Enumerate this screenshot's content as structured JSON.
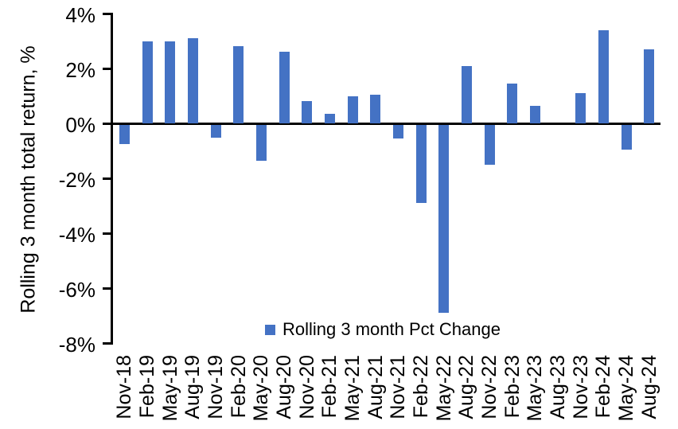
{
  "chart_data": {
    "type": "bar",
    "title": "",
    "xlabel": "",
    "ylabel": "Rolling 3 month total return, %",
    "legend": "Rolling 3 month Pct Change",
    "legend_position": "bottom-center-inside",
    "grid": false,
    "ylim": [
      -8,
      4
    ],
    "yticks": [
      {
        "value": 4,
        "label": "4%"
      },
      {
        "value": 2,
        "label": "2%"
      },
      {
        "value": 0,
        "label": "0%"
      },
      {
        "value": -2,
        "label": "-2%"
      },
      {
        "value": -4,
        "label": "-4%"
      },
      {
        "value": -6,
        "label": "-6%"
      },
      {
        "value": -8,
        "label": "-8%"
      }
    ],
    "categories": [
      "Nov-18",
      "Feb-19",
      "May-19",
      "Aug-19",
      "Nov-19",
      "Feb-20",
      "May-20",
      "Aug-20",
      "Nov-20",
      "Feb-21",
      "May-21",
      "Aug-21",
      "Nov-21",
      "Feb-22",
      "May-22",
      "Aug-22",
      "Nov-22",
      "Feb-23",
      "May-23",
      "Aug-23",
      "Nov-23",
      "Feb-24",
      "May-24",
      "Aug-24"
    ],
    "series": [
      {
        "name": "Rolling 3 month Pct Change",
        "values": [
          -0.7,
          3.0,
          3.0,
          3.1,
          -0.45,
          2.8,
          -1.3,
          2.6,
          0.8,
          0.35,
          1.0,
          1.05,
          -0.5,
          -2.85,
          -6.85,
          2.1,
          -1.45,
          1.45,
          0.65,
          0,
          1.1,
          3.4,
          -0.9,
          2.7
        ]
      }
    ],
    "bar_color": "#4472C4",
    "axis_color": "#000000"
  }
}
